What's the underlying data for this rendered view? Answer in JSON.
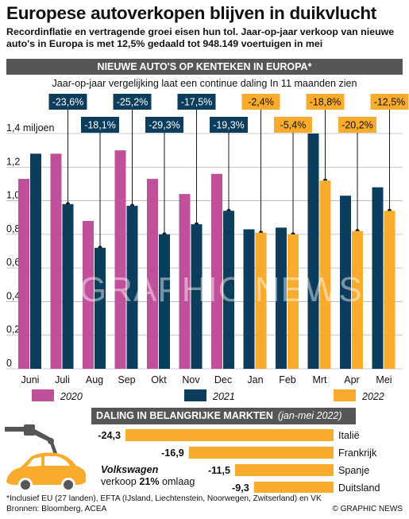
{
  "header": {
    "title": "Europese autoverkopen blijven in duikvlucht",
    "subtitle": "Recordinflatie en vertragende groei eisen hun tol. Jaar-op-jaar verkoop van nieuwe auto's in Europa is met 12,5% gedaald tot 948.149 voertuigen in mei"
  },
  "banner": {
    "label": "NIEUWE AUTO'S OP KENTEKEN IN EUROPA*"
  },
  "lead": "Jaar-op-jaar vergelijking laat een continue daling In 11 maanden zien",
  "colors": {
    "y2020": "#c0509a",
    "y2021": "#0d3d5c",
    "y2022": "#f9ab2d",
    "banner": "#565656"
  },
  "chart_data": [
    {
      "type": "bar",
      "ylabel": "1,4 miljoen",
      "ylim": [
        0,
        1.4
      ],
      "yticks": [
        "0",
        "0,2",
        "0,4",
        "0,6",
        "0,8",
        "1,0",
        "1,2",
        "1,4 miljoen"
      ],
      "categories": [
        "Juni",
        "Juli",
        "Aug",
        "Sep",
        "Okt",
        "Nov",
        "Dec",
        "Jan",
        "Feb",
        "Mrt",
        "Apr",
        "Mei"
      ],
      "series": [
        {
          "name": "2020",
          "values": [
            1.13,
            1.28,
            0.88,
            1.3,
            1.13,
            1.04,
            1.16,
            null,
            null,
            null,
            null,
            null
          ]
        },
        {
          "name": "2021",
          "values": [
            1.28,
            0.98,
            0.72,
            0.97,
            0.8,
            0.86,
            0.94,
            0.83,
            0.84,
            1.4,
            1.03,
            1.08
          ]
        },
        {
          "name": "2022",
          "values": [
            null,
            null,
            null,
            null,
            null,
            null,
            null,
            0.81,
            0.8,
            1.12,
            0.82,
            0.94
          ]
        }
      ],
      "yoy_labels": [
        "-23,6%",
        "-18,1%",
        "-25,2%",
        "-29,3%",
        "-17,5%",
        "-19,3%",
        "-2,4%",
        "-5,4%",
        "-18,8%",
        "-20,2%",
        "-12,5%"
      ],
      "legend": [
        "2020",
        "2021",
        "2022"
      ]
    },
    {
      "type": "bar",
      "title": "DALING IN BELANGRIJKE MARKTEN",
      "subtitle": "(jan-mei 2022)",
      "categories": [
        "Italië",
        "Frankrijk",
        "Spanje",
        "Duitsland"
      ],
      "values": [
        -24.3,
        -16.9,
        -11.5,
        -9.3
      ],
      "value_labels": [
        "-24,3",
        "-16,9",
        "-11,5",
        "-9,3"
      ]
    }
  ],
  "vw": {
    "brand": "Volkswagen",
    "text_before": "verkoop ",
    "pct": "21%",
    "text_after": " omlaag"
  },
  "footnote": "*Inclusief EU (27 landen), EFTA (IJsland, Liechtenstein, Noorwegen, Zwitserland) en VK",
  "sources": "Bronnen: Bloomberg, ACEA",
  "credit": "© GRAPHIC NEWS",
  "watermark": "GRAPHIC NEWS"
}
